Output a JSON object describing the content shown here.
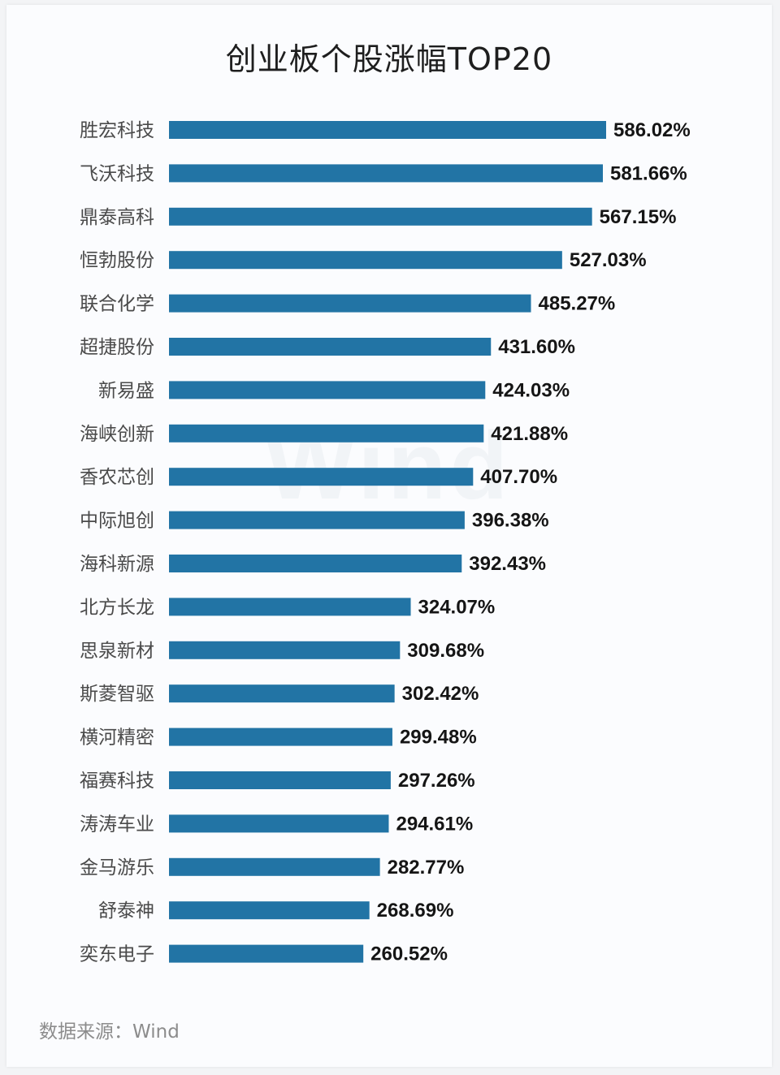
{
  "chart_data": {
    "type": "bar",
    "orientation": "horizontal",
    "title": "创业板个股涨幅TOP20",
    "categories": [
      "胜宏科技",
      "飞沃科技",
      "鼎泰高科",
      "恒勃股份",
      "联合化学",
      "超捷股份",
      "新易盛",
      "海峡创新",
      "香农芯创",
      "中际旭创",
      "海科新源",
      "北方长龙",
      "思泉新材",
      "斯菱智驱",
      "横河精密",
      "福赛科技",
      "涛涛车业",
      "金马游乐",
      "舒泰神",
      "奕东电子"
    ],
    "values": [
      586.02,
      581.66,
      567.15,
      527.03,
      485.27,
      431.6,
      424.03,
      421.88,
      407.7,
      396.38,
      392.43,
      324.07,
      309.68,
      302.42,
      299.48,
      297.26,
      294.61,
      282.77,
      268.69,
      260.52
    ],
    "value_labels": [
      "586.02%",
      "581.66%",
      "567.15%",
      "527.03%",
      "485.27%",
      "431.60%",
      "424.03%",
      "421.88%",
      "407.70%",
      "396.38%",
      "392.43%",
      "324.07%",
      "309.68%",
      "302.42%",
      "299.48%",
      "297.26%",
      "294.61%",
      "282.77%",
      "268.69%",
      "260.52%"
    ],
    "unit": "%",
    "bar_color": "#2274a5",
    "grid": false,
    "legend": "none"
  },
  "watermark": "Wind",
  "source": "数据来源：Wind"
}
